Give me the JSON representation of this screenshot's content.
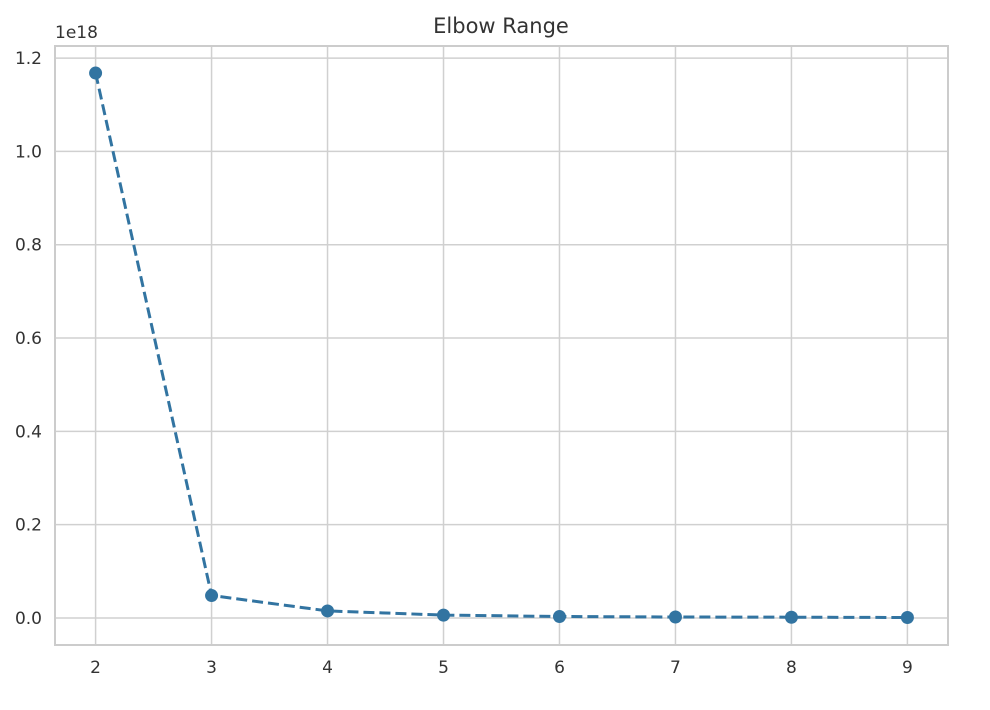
{
  "chart_data": {
    "type": "line",
    "title": "Elbow Range",
    "xlabel": "",
    "ylabel": "",
    "y_offset_label": "1e18",
    "x": [
      2,
      3,
      4,
      5,
      6,
      7,
      8,
      9
    ],
    "series": [
      {
        "values": [
          1.168,
          0.048,
          0.015,
          0.006,
          0.003,
          0.002,
          0.0015,
          0.001
        ],
        "color": "#3274a1",
        "line_style": "dashed",
        "marker": "circle"
      }
    ],
    "x_ticks": [
      "2",
      "3",
      "4",
      "5",
      "6",
      "7",
      "8",
      "9"
    ],
    "y_ticks": [
      "0.0",
      "0.2",
      "0.4",
      "0.6",
      "0.8",
      "1.0",
      "1.2"
    ],
    "y_tick_values": [
      0.0,
      0.2,
      0.4,
      0.6,
      0.8,
      1.0,
      1.2
    ],
    "xlim": [
      1.65,
      9.35
    ],
    "ylim": [
      -0.058,
      1.226
    ],
    "grid": true,
    "colors": {
      "grid": "#d0d0d0",
      "axes_edge": "#cccccc",
      "background": "#ffffff"
    }
  }
}
